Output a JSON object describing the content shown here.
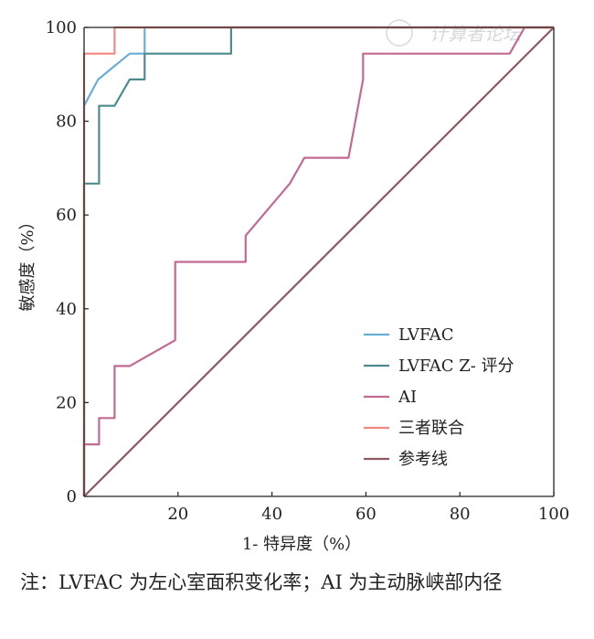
{
  "watermark": "计算者论坛",
  "note": "注：LVFAC 为左心室面积变化率；AI 为主动脉峡部内径",
  "chart_data": {
    "type": "line",
    "xlabel": "1- 特异度（%）",
    "ylabel": "敏感度（%）",
    "xlim": [
      0,
      100
    ],
    "ylim": [
      0,
      100
    ],
    "xticks": [
      0,
      20,
      40,
      60,
      80,
      100
    ],
    "yticks": [
      0,
      20,
      40,
      60,
      80,
      100
    ],
    "x_tick_labels": [
      "20",
      "40",
      "60",
      "80",
      "100"
    ],
    "y_tick_labels": [
      "0",
      "20",
      "40",
      "60",
      "80",
      "100"
    ],
    "grid": false,
    "legend_position": "bottom-right",
    "series": [
      {
        "name": "LVFAC",
        "color": "#6aaed6",
        "points": [
          [
            0,
            0
          ],
          [
            0,
            83.3
          ],
          [
            3,
            88.9
          ],
          [
            9.7,
            94.4
          ],
          [
            12.9,
            94.4
          ],
          [
            12.9,
            100
          ],
          [
            100,
            100
          ]
        ]
      },
      {
        "name": "LVFAC Z- 评分",
        "color": "#4f8a8f",
        "points": [
          [
            0,
            0
          ],
          [
            0,
            66.7
          ],
          [
            3.2,
            66.7
          ],
          [
            3.2,
            83.3
          ],
          [
            6.5,
            83.3
          ],
          [
            9.7,
            88.9
          ],
          [
            12.9,
            88.9
          ],
          [
            12.9,
            94.4
          ],
          [
            31.3,
            94.4
          ],
          [
            31.3,
            100
          ],
          [
            100,
            100
          ]
        ]
      },
      {
        "name": "AI",
        "color": "#c26a93",
        "points": [
          [
            0,
            0
          ],
          [
            0,
            11.1
          ],
          [
            3.2,
            11.1
          ],
          [
            3.2,
            16.7
          ],
          [
            6.5,
            16.7
          ],
          [
            6.5,
            27.8
          ],
          [
            9.7,
            27.8
          ],
          [
            19.4,
            33.3
          ],
          [
            19.4,
            50
          ],
          [
            34.4,
            50
          ],
          [
            34.4,
            55.6
          ],
          [
            43.8,
            66.7
          ],
          [
            46.9,
            72.2
          ],
          [
            56.3,
            72.2
          ],
          [
            59.4,
            88.9
          ],
          [
            59.4,
            94.4
          ],
          [
            90.6,
            94.4
          ],
          [
            93.8,
            100
          ],
          [
            100,
            100
          ]
        ]
      },
      {
        "name": "三者联合",
        "color": "#f08a80",
        "points": [
          [
            0,
            0
          ],
          [
            0,
            94.4
          ],
          [
            6.5,
            94.4
          ],
          [
            6.5,
            100
          ],
          [
            100,
            100
          ]
        ]
      },
      {
        "name": "参考线",
        "color": "#8c5a60",
        "points": [
          [
            0,
            0
          ],
          [
            100,
            100
          ]
        ]
      }
    ]
  }
}
